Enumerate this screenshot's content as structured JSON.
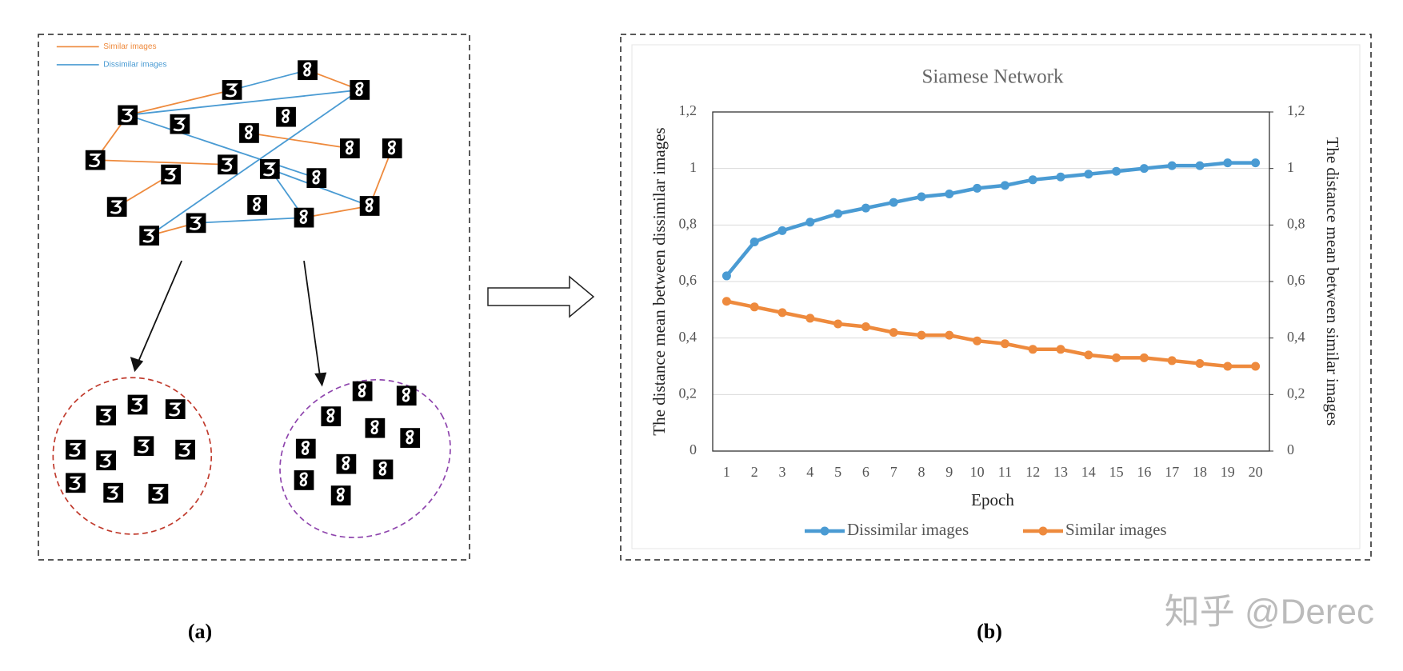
{
  "panel_a": {
    "legend": [
      "Similar images",
      "Dissimilar images"
    ],
    "caption": "(a)"
  },
  "panel_b_caption": "(b)",
  "watermark": "知乎 @Derec",
  "chart_data": {
    "type": "line",
    "title": "Siamese Network",
    "x_label": "Epoch",
    "y_label": "The distance mean between dissimilar images",
    "y2_label": "The distance mean between similar images",
    "categories": [
      "1",
      "2",
      "3",
      "4",
      "5",
      "6",
      "7",
      "8",
      "9",
      "10",
      "11",
      "12",
      "13",
      "14",
      "15",
      "16",
      "17",
      "18",
      "19",
      "20"
    ],
    "series": [
      {
        "name": "Dissimilar images",
        "color": "#4a9bd3",
        "values": [
          0.62,
          0.74,
          0.78,
          0.81,
          0.84,
          0.86,
          0.88,
          0.9,
          0.91,
          0.93,
          0.94,
          0.96,
          0.97,
          0.98,
          0.99,
          1.0,
          1.01,
          1.01,
          1.02,
          1.02
        ]
      },
      {
        "name": "Similar images",
        "color": "#ee8a3d",
        "axis": "y2",
        "values": [
          0.53,
          0.51,
          0.49,
          0.47,
          0.45,
          0.44,
          0.42,
          0.41,
          0.41,
          0.39,
          0.38,
          0.36,
          0.36,
          0.34,
          0.33,
          0.33,
          0.32,
          0.31,
          0.3,
          0.3
        ]
      }
    ],
    "ylim": [
      0,
      1.2
    ],
    "yticks": [
      0,
      {
        "value": 0.2,
        "label": "0,2"
      },
      {
        "value": 0.4,
        "label": "0,4"
      },
      {
        "value": 0.6,
        "label": "0,6"
      },
      {
        "value": 0.8,
        "label": "0,8"
      },
      1,
      {
        "value": 1.2,
        "label": "1,2"
      }
    ],
    "y2lim": [
      0,
      1.2
    ],
    "y2ticks": [
      0,
      {
        "value": 0.2,
        "label": "0,2"
      },
      {
        "value": 0.4,
        "label": "0,4"
      },
      {
        "value": 0.6,
        "label": "0,6"
      },
      {
        "value": 0.8,
        "label": "0,8"
      },
      1,
      {
        "value": 1.2,
        "label": "1,2"
      }
    ],
    "grid": true,
    "legend": "bottom"
  }
}
